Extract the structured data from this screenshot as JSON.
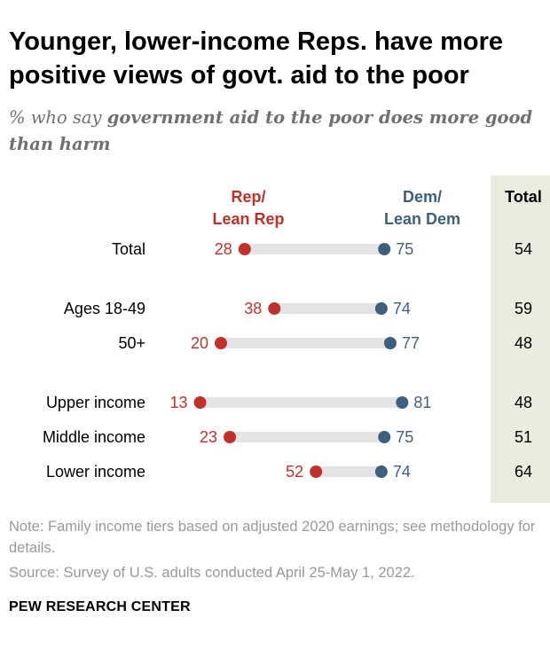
{
  "header": {
    "title": "Younger, lower-income Reps. have more positive views of govt. aid to the poor",
    "subtitle_lead": "% who say",
    "subtitle_emph": "government aid to the poor does more good than harm"
  },
  "footer": {
    "note": "Note: Family income tiers based on adjusted 2020 earnings; see methodology for details.",
    "source": "Source: Survey of U.S. adults conducted April 25-May 1, 2022.",
    "brand": "PEW RESEARCH CENTER"
  },
  "colors": {
    "rep": "#c0312b",
    "dem": "#3f5f7f",
    "bar": "#e4e4e4",
    "total_column": "#ecebe0"
  },
  "chart_data": {
    "type": "dot",
    "categories": [
      "Total",
      "Ages 18-49",
      "50+",
      "Upper income",
      "Middle income",
      "Lower income"
    ],
    "series": [
      {
        "name": "Rep/ Lean Rep",
        "values": [
          28,
          38,
          20,
          13,
          23,
          52
        ]
      },
      {
        "name": "Dem/ Lean Dem",
        "values": [
          75,
          74,
          77,
          81,
          75,
          74
        ]
      }
    ],
    "total": {
      "name": "Total",
      "values": [
        54,
        59,
        48,
        48,
        51,
        64
      ]
    },
    "legend": {
      "rep": [
        "Rep/",
        "Lean Rep"
      ],
      "dem": [
        "Dem/",
        "Lean Dem"
      ],
      "total": "Total"
    },
    "groups": [
      [
        0
      ],
      [
        1,
        2
      ],
      [
        3,
        4,
        5
      ]
    ],
    "xlim": [
      0,
      100
    ],
    "grid": false
  }
}
